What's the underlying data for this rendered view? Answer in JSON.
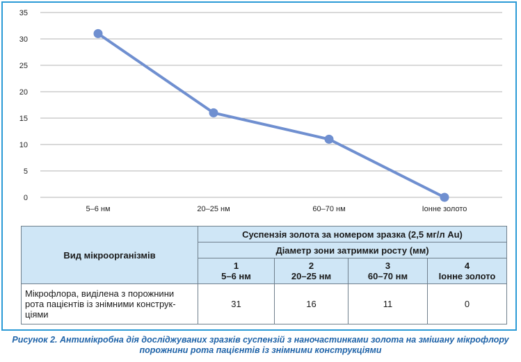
{
  "chart_data": {
    "type": "line",
    "categories": [
      "5–6 нм",
      "20–25 нм",
      "60–70 нм",
      "Іонне золото"
    ],
    "series": [
      {
        "values": [
          31,
          16,
          11,
          0
        ]
      }
    ],
    "yticks": [
      "0",
      "5",
      "10",
      "15",
      "20",
      "25",
      "30",
      "35"
    ],
    "ylim": [
      0,
      35
    ],
    "grid": "horizontal",
    "color": "#6f8fd0"
  },
  "table": {
    "row_header": "Вид мікроорганізмів",
    "group_header": "Суспензія золота за номером зразка (2,5 мг/л Au)",
    "sub_header": "Діаметр зони затримки росту (мм)",
    "columns": [
      {
        "num": "1",
        "size": "5–6 нм"
      },
      {
        "num": "2",
        "size": "20–25 нм"
      },
      {
        "num": "3",
        "size": "60–70 нм"
      },
      {
        "num": "4",
        "size": "Іонне золото"
      }
    ],
    "rows": [
      {
        "label": "Мікрофлора, виділена з порожнини рота пацієнтів із знімними конструк-ціями",
        "values": [
          "31",
          "16",
          "11",
          "0"
        ]
      }
    ],
    "header_bg": "#cfe6f6"
  },
  "caption": "Рисунок 2. Антимікробна дія досліджуваних зразків суспензій з наночастинками золота на змішану мікрофлору порожнини рота пацієнтів із знімними конструкціями",
  "frame_color": "#2a9ad6"
}
